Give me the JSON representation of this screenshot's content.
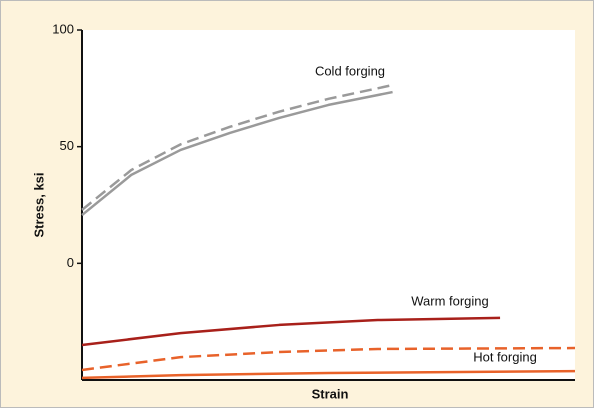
{
  "chart_data": {
    "type": "line",
    "x_label": "Strain",
    "y_label": "Stress, ksi",
    "xlim": [
      0,
      1
    ],
    "ylim": [
      -50,
      100
    ],
    "yticks": [
      0,
      50,
      100
    ],
    "series": [
      {
        "name": "Cold forging",
        "color": "#9a9a9a",
        "dash": false,
        "x": [
          0,
          0.1,
          0.2,
          0.3,
          0.4,
          0.5,
          0.63
        ],
        "values": [
          20.7,
          37.9,
          48.6,
          55.9,
          62.3,
          67.9,
          73.4
        ]
      },
      {
        "color": "#9a9a9a",
        "dash": true,
        "x": [
          0,
          0.1,
          0.2,
          0.3,
          0.4,
          0.5,
          0.63
        ],
        "values": [
          22.9,
          40.0,
          51.0,
          58.5,
          65.0,
          70.5,
          76.4
        ]
      },
      {
        "name": "Warm forging",
        "color": "#a8201a",
        "dash": false,
        "x": [
          0,
          0.2,
          0.4,
          0.6,
          0.848
        ],
        "values": [
          -35,
          -29.9,
          -26.4,
          -24.3,
          -23.4
        ]
      },
      {
        "color": "#e8622a",
        "dash": true,
        "x": [
          0,
          0.2,
          0.4,
          0.6,
          1.0
        ],
        "values": [
          -45.7,
          -40.2,
          -38,
          -36.7,
          -36.3
        ]
      },
      {
        "name": "Hot forging",
        "color": "#e8622a",
        "dash": false,
        "x": [
          0,
          0.2,
          0.5,
          1.0
        ],
        "values": [
          -49.1,
          -47.9,
          -47,
          -46.2
        ]
      }
    ]
  }
}
